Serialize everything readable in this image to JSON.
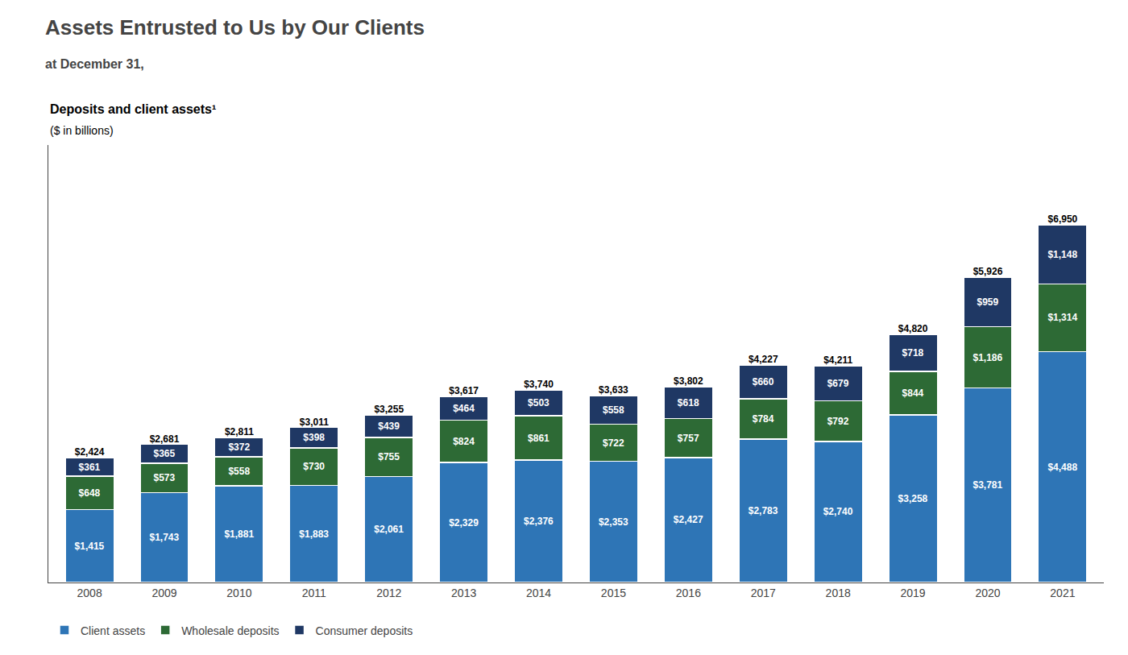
{
  "chart_data": {
    "type": "bar",
    "stacked": true,
    "data_labels": true,
    "tick_labels": "x",
    "grid": false,
    "legend": "bottom left",
    "title": "Assets Entrusted to Us by Our Clients",
    "subtitle": "at December 31,",
    "annotations": [
      "Deposits and client assets¹",
      "($ in billions)"
    ],
    "categories": [
      "2008",
      "2009",
      "2010",
      "2011",
      "2012",
      "2013",
      "2014",
      "2015",
      "2016",
      "2017",
      "2018",
      "2019",
      "2020",
      "2021"
    ],
    "ylim": [
      0,
      8500
    ],
    "series": [
      {
        "name": "Client assets",
        "color": "#2e75b6",
        "values": [
          1415,
          1743,
          1881,
          1883,
          2061,
          2329,
          2376,
          2353,
          2427,
          2783,
          2740,
          3258,
          3781,
          4488
        ],
        "value_labels": [
          "$1,415",
          "$1,743",
          "$1,881",
          "$1,883",
          "$2,061",
          "$2,329",
          "$2,376",
          "$2,353",
          "$2,427",
          "$2,783",
          "$2,740",
          "$3,258",
          "$3,781",
          "$4,488"
        ]
      },
      {
        "name": "Wholesale deposits",
        "color": "#2d6a35",
        "values": [
          648,
          573,
          558,
          730,
          755,
          824,
          861,
          722,
          757,
          784,
          792,
          844,
          1186,
          1314
        ],
        "value_labels": [
          "$648",
          "$573",
          "$558",
          "$730",
          "$755",
          "$824",
          "$861",
          "$722",
          "$757",
          "$784",
          "$792",
          "$844",
          "$1,186",
          "$1,314"
        ]
      },
      {
        "name": "Consumer deposits",
        "color": "#1f3864",
        "values": [
          361,
          365,
          372,
          398,
          439,
          464,
          503,
          558,
          618,
          660,
          679,
          718,
          959,
          1148
        ],
        "value_labels": [
          "$361",
          "$365",
          "$372",
          "$398",
          "$439",
          "$464",
          "$503",
          "$558",
          "$618",
          "$660",
          "$679",
          "$718",
          "$959",
          "$1,148"
        ]
      }
    ],
    "totals": [
      2424,
      2681,
      2811,
      3011,
      3255,
      3617,
      3740,
      3633,
      3802,
      4227,
      4211,
      4820,
      5926,
      6950
    ],
    "total_labels": [
      "$2,424",
      "$2,681",
      "$2,811",
      "$3,011",
      "$3,255",
      "$3,617",
      "$3,740",
      "$3,633",
      "$3,802",
      "$4,227",
      "$4,211",
      "$4,820",
      "$5,926",
      "$6,950"
    ]
  }
}
